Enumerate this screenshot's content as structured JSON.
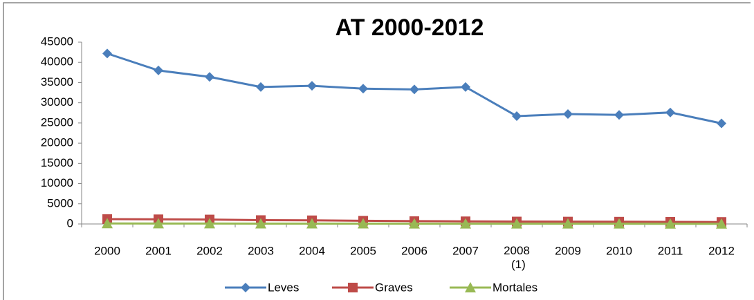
{
  "chart_data": {
    "type": "line",
    "title": "AT 2000-2012",
    "categories": [
      "2000",
      "2001",
      "2002",
      "2003",
      "2004",
      "2005",
      "2006",
      "2007",
      "2008 (1)",
      "2009",
      "2010",
      "2011",
      "2012"
    ],
    "series": [
      {
        "name": "Leves",
        "color": "#4a7ebb",
        "marker": "diamond",
        "values": [
          42200,
          38000,
          36400,
          33900,
          34200,
          33500,
          33300,
          33900,
          26700,
          27200,
          27000,
          27600,
          24900
        ]
      },
      {
        "name": "Graves",
        "color": "#be4b48",
        "marker": "square",
        "values": [
          1200,
          1150,
          1100,
          950,
          900,
          800,
          700,
          650,
          600,
          580,
          550,
          520,
          480
        ]
      },
      {
        "name": "Mortales",
        "color": "#98b954",
        "marker": "triangle",
        "values": [
          120,
          110,
          100,
          90,
          90,
          80,
          70,
          70,
          60,
          60,
          55,
          50,
          45
        ]
      }
    ],
    "ylim": [
      0,
      45000
    ],
    "yticks": [
      0,
      5000,
      10000,
      15000,
      20000,
      25000,
      30000,
      35000,
      40000,
      45000
    ],
    "legend": "bottom"
  }
}
